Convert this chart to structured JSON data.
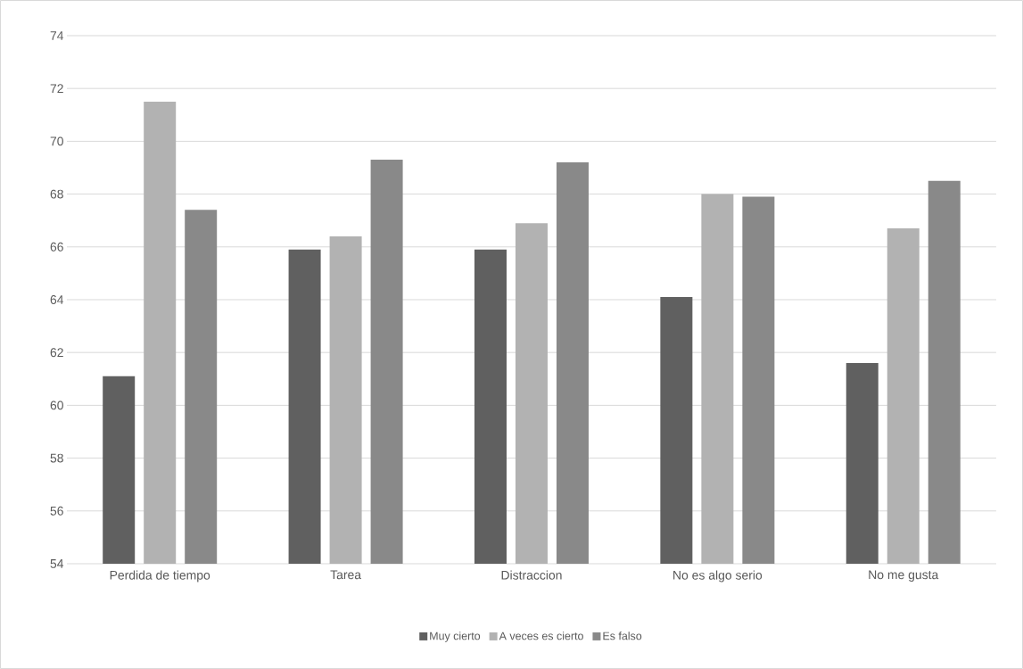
{
  "chart_data": {
    "type": "bar",
    "categories": [
      "Perdida de tiempo",
      "Tarea",
      "Distraccion",
      "No es algo serio",
      "No me gusta"
    ],
    "series": [
      {
        "name": "Muy cierto",
        "color": "#606060",
        "values": [
          61.1,
          65.9,
          65.9,
          64.1,
          61.6
        ]
      },
      {
        "name": "A veces es cierto",
        "color": "#b2b2b2",
        "values": [
          71.5,
          66.4,
          66.9,
          68.0,
          66.7
        ]
      },
      {
        "name": "Es falso",
        "color": "#898989",
        "values": [
          67.4,
          69.3,
          69.2,
          67.9,
          68.5
        ]
      }
    ],
    "ylim": [
      54,
      74
    ],
    "yticks": [
      54,
      56,
      58,
      60,
      62,
      64,
      66,
      68,
      70,
      72,
      74
    ],
    "grid": "y",
    "legend": "bottom"
  }
}
